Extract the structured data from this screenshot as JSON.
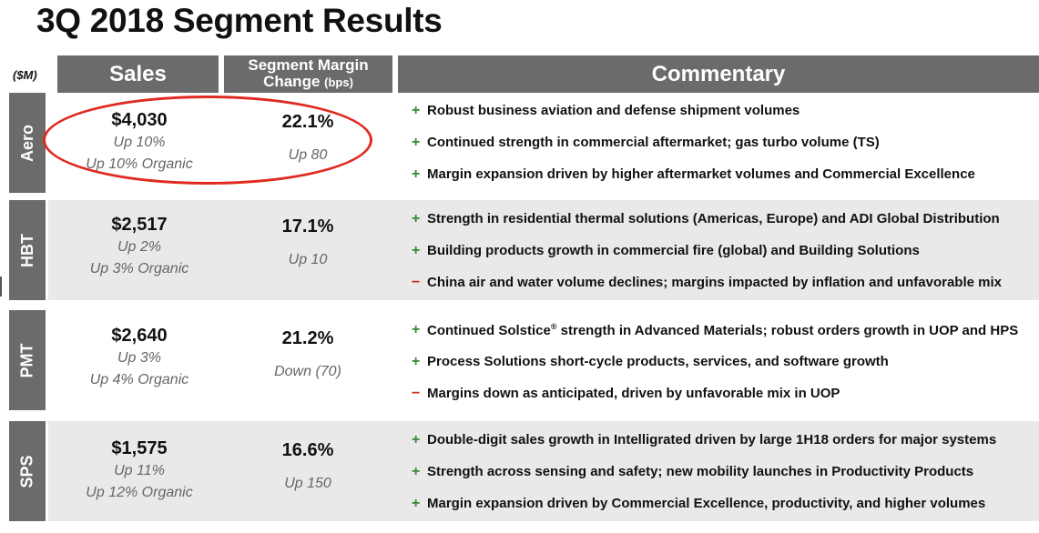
{
  "title": "3Q 2018 Segment Results",
  "units": "($M)",
  "headers": {
    "sales": "Sales",
    "margin_line1": "Segment Margin",
    "margin_line2": "Change",
    "margin_unit": "(bps)",
    "commentary": "Commentary"
  },
  "segments": [
    {
      "name": "Aero",
      "sales": "$4,030",
      "sales_growth": "Up 10%",
      "organic": "Up 10% Organic",
      "margin": "22.1%",
      "margin_change": "Up 80",
      "bullets": [
        {
          "sign": "+",
          "text": "Robust business aviation and defense shipment volumes"
        },
        {
          "sign": "+",
          "text": "Continued strength in commercial aftermarket; gas turbo volume (TS)"
        },
        {
          "sign": "+",
          "text": "Margin expansion driven by higher aftermarket volumes and Commercial Excellence"
        }
      ]
    },
    {
      "name": "HBT",
      "sales": "$2,517",
      "sales_growth": "Up 2%",
      "organic": "Up 3% Organic",
      "margin": "17.1%",
      "margin_change": "Up 10",
      "bullets": [
        {
          "sign": "+",
          "text": "Strength in residential thermal solutions (Americas, Europe) and ADI Global Distribution"
        },
        {
          "sign": "+",
          "text": "Building products growth in commercial fire (global) and Building Solutions"
        },
        {
          "sign": "−",
          "text": "China air and water volume declines; margins impacted by inflation and unfavorable mix"
        }
      ]
    },
    {
      "name": "PMT",
      "sales": "$2,640",
      "sales_growth": "Up 3%",
      "organic": "Up 4% Organic",
      "margin": "21.2%",
      "margin_change": "Down (70)",
      "bullets": [
        {
          "sign": "+",
          "text_before": "Continued Solstice",
          "sup": "®",
          "text_after": " strength in Advanced Materials; robust orders growth in UOP and HPS"
        },
        {
          "sign": "+",
          "text": "Process Solutions short-cycle products, services, and software growth"
        },
        {
          "sign": "−",
          "text": "Margins down as anticipated, driven by unfavorable mix in UOP"
        }
      ]
    },
    {
      "name": "SPS",
      "sales": "$1,575",
      "sales_growth": "Up 11%",
      "organic": "Up 12% Organic",
      "margin": "16.6%",
      "margin_change": "Up 150",
      "bullets": [
        {
          "sign": "+",
          "text": "Double-digit sales growth in Intelligrated driven by large 1H18 orders for major systems"
        },
        {
          "sign": "+",
          "text": "Strength across sensing and safety; new mobility launches in Productivity Products"
        },
        {
          "sign": "+",
          "text": "Margin expansion driven by Commercial Excellence, productivity, and higher volumes"
        }
      ]
    }
  ],
  "colors": {
    "header_bg": "#6b6b6b",
    "row_shade": "#e9e9e9",
    "plus": "#2e8b3a",
    "minus": "#d6261f",
    "highlight": "#e02a1f"
  }
}
